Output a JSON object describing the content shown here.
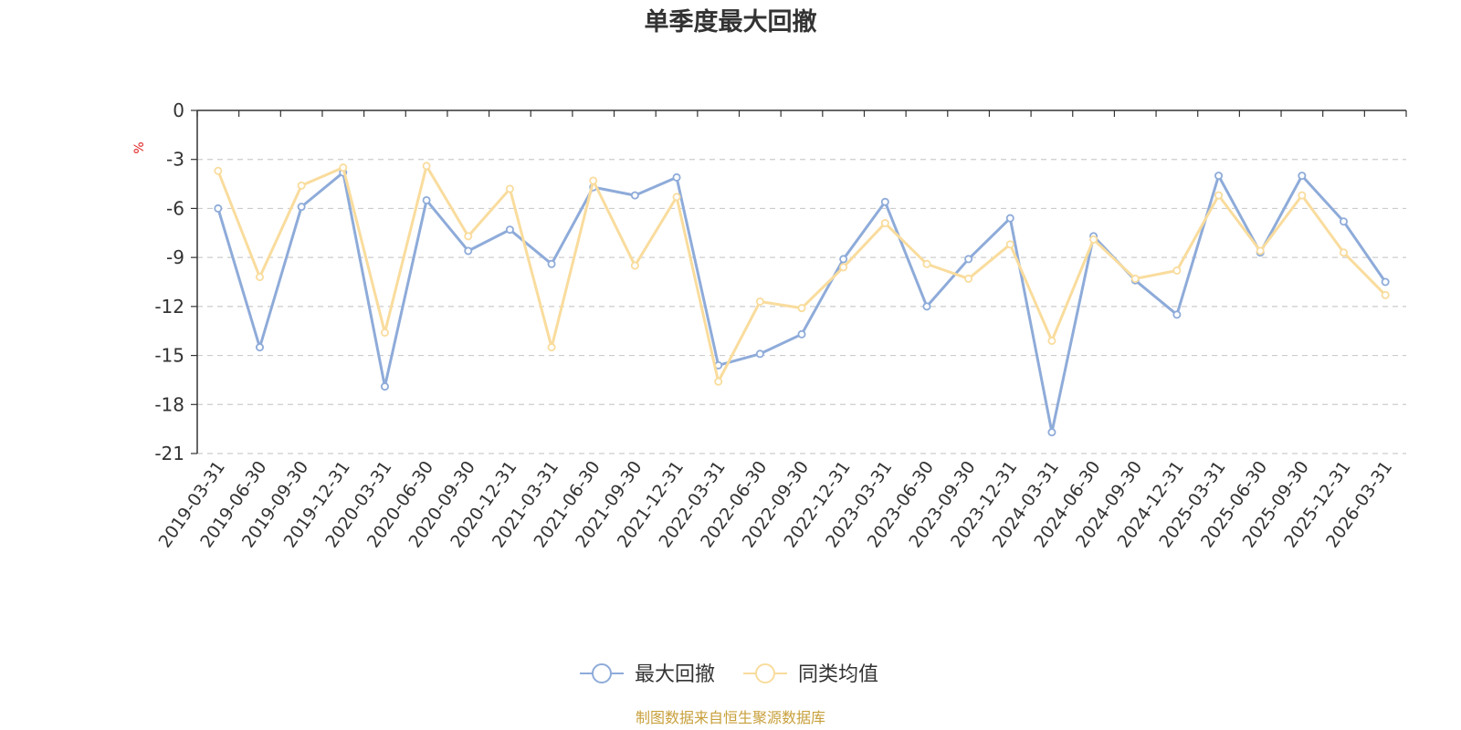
{
  "chart_data": {
    "type": "line",
    "title": "单季度最大回撤",
    "ylabel": "%",
    "ylim": [
      -21,
      0
    ],
    "yticks": [
      0,
      -3,
      -6,
      -9,
      -12,
      -15,
      -18,
      -21
    ],
    "grid": true,
    "legend_position": "bottom",
    "categories": [
      "2019-03-31",
      "2019-06-30",
      "2019-09-30",
      "2019-12-31",
      "2020-03-31",
      "2020-06-30",
      "2020-09-30",
      "2020-12-31",
      "2021-03-31",
      "2021-06-30",
      "2021-09-30",
      "2021-12-31",
      "2022-03-31",
      "2022-06-30",
      "2022-09-30",
      "2022-12-31",
      "2023-03-31",
      "2023-06-30",
      "2023-09-30",
      "2023-12-31",
      "2024-03-31",
      "2024-06-30",
      "2024-09-30",
      "2024-12-31",
      "2025-03-31",
      "2025-06-30",
      "2025-09-30",
      "2025-12-31",
      "2026-03-31"
    ],
    "series": [
      {
        "name": "最大回撤",
        "color": "#8eabd9",
        "values": [
          -6.0,
          -14.5,
          -5.9,
          -3.8,
          -16.9,
          -5.5,
          -8.6,
          -7.3,
          -9.4,
          -4.7,
          -5.2,
          -4.1,
          -15.6,
          -14.9,
          -13.7,
          -9.1,
          -5.6,
          -12.0,
          -9.1,
          -6.6,
          -19.7,
          -7.7,
          -10.4,
          -12.5,
          -4.0,
          -8.7,
          -4.0,
          -6.8,
          -10.5
        ]
      },
      {
        "name": "同类均值",
        "color": "#f9dc9d",
        "values": [
          -3.7,
          -10.2,
          -4.6,
          -3.5,
          -13.6,
          -3.4,
          -7.7,
          -4.8,
          -14.5,
          -4.3,
          -9.5,
          -5.3,
          -16.6,
          -11.7,
          -12.1,
          -9.6,
          -6.9,
          -9.4,
          -10.3,
          -8.2,
          -14.1,
          -7.9,
          -10.3,
          -9.8,
          -5.2,
          -8.6,
          -5.2,
          -8.7,
          -11.3
        ]
      }
    ]
  },
  "source_note": "制图数据来自恒生聚源数据库"
}
